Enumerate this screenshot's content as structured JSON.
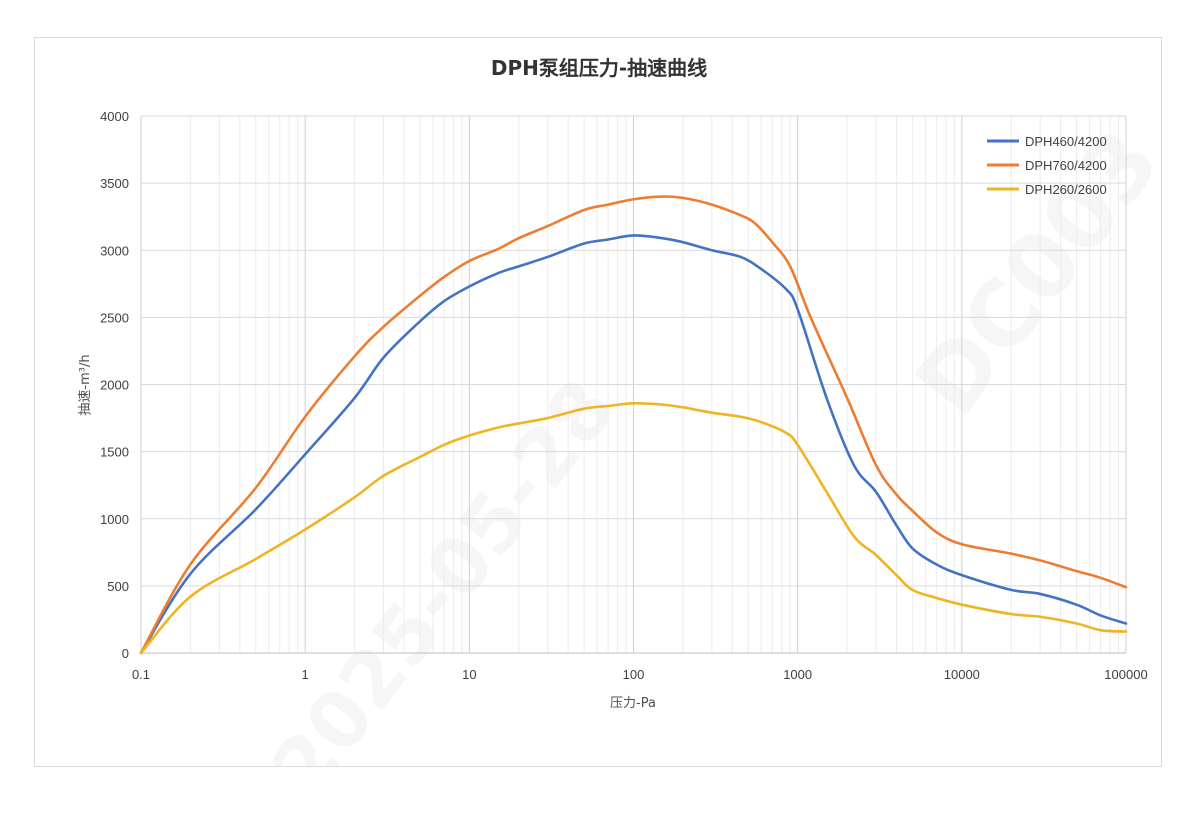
{
  "chart_data": {
    "type": "line",
    "title": "DPH泵组压力-抽速曲线",
    "xlabel": "压力-Pa",
    "ylabel": "抽速-m³/h",
    "x_scale": "log",
    "xlim": [
      0.1,
      100000
    ],
    "ylim": [
      0,
      4000
    ],
    "x_ticks": [
      "0.1",
      "1",
      "10",
      "100",
      "1000",
      "10000",
      "100000"
    ],
    "y_ticks": [
      "0",
      "500",
      "1000",
      "1500",
      "2000",
      "2500",
      "3000",
      "3500",
      "4000"
    ],
    "grid": true,
    "legend_position": "top-right",
    "series": [
      {
        "name": "DPH460/4200",
        "color": "#4472C4",
        "points": [
          [
            0.1,
            0
          ],
          [
            0.2,
            590
          ],
          [
            0.5,
            1070
          ],
          [
            1,
            1480
          ],
          [
            2,
            1900
          ],
          [
            3,
            2200
          ],
          [
            5,
            2470
          ],
          [
            7,
            2620
          ],
          [
            10,
            2730
          ],
          [
            15,
            2830
          ],
          [
            20,
            2880
          ],
          [
            30,
            2950
          ],
          [
            50,
            3050
          ],
          [
            70,
            3080
          ],
          [
            100,
            3110
          ],
          [
            150,
            3090
          ],
          [
            200,
            3060
          ],
          [
            300,
            3000
          ],
          [
            450,
            2950
          ],
          [
            600,
            2860
          ],
          [
            850,
            2710
          ],
          [
            1000,
            2560
          ],
          [
            1500,
            1900
          ],
          [
            2200,
            1400
          ],
          [
            3000,
            1200
          ],
          [
            4000,
            950
          ],
          [
            5000,
            780
          ],
          [
            7000,
            660
          ],
          [
            10000,
            580
          ],
          [
            20000,
            470
          ],
          [
            30000,
            440
          ],
          [
            50000,
            360
          ],
          [
            70000,
            280
          ],
          [
            100000,
            220
          ]
        ]
      },
      {
        "name": "DPH760/4200",
        "color": "#ED7D31",
        "points": [
          [
            0.1,
            0
          ],
          [
            0.2,
            660
          ],
          [
            0.5,
            1230
          ],
          [
            1,
            1760
          ],
          [
            2,
            2210
          ],
          [
            3,
            2430
          ],
          [
            5,
            2660
          ],
          [
            7,
            2800
          ],
          [
            10,
            2920
          ],
          [
            15,
            3010
          ],
          [
            20,
            3090
          ],
          [
            30,
            3180
          ],
          [
            50,
            3300
          ],
          [
            70,
            3340
          ],
          [
            100,
            3380
          ],
          [
            150,
            3400
          ],
          [
            200,
            3390
          ],
          [
            300,
            3340
          ],
          [
            450,
            3260
          ],
          [
            550,
            3200
          ],
          [
            700,
            3060
          ],
          [
            900,
            2880
          ],
          [
            1200,
            2500
          ],
          [
            2000,
            1900
          ],
          [
            3000,
            1400
          ],
          [
            4000,
            1180
          ],
          [
            5000,
            1060
          ],
          [
            7000,
            900
          ],
          [
            10000,
            810
          ],
          [
            20000,
            740
          ],
          [
            30000,
            690
          ],
          [
            50000,
            610
          ],
          [
            70000,
            560
          ],
          [
            100000,
            490
          ]
        ]
      },
      {
        "name": "DPH260/2600",
        "color": "#F0B422",
        "points": [
          [
            0.1,
            0
          ],
          [
            0.2,
            420
          ],
          [
            0.5,
            700
          ],
          [
            1,
            920
          ],
          [
            2,
            1160
          ],
          [
            3,
            1320
          ],
          [
            5,
            1460
          ],
          [
            7,
            1550
          ],
          [
            10,
            1620
          ],
          [
            15,
            1680
          ],
          [
            20,
            1710
          ],
          [
            30,
            1750
          ],
          [
            50,
            1820
          ],
          [
            70,
            1840
          ],
          [
            100,
            1860
          ],
          [
            150,
            1850
          ],
          [
            200,
            1830
          ],
          [
            300,
            1790
          ],
          [
            450,
            1760
          ],
          [
            600,
            1720
          ],
          [
            850,
            1640
          ],
          [
            1000,
            1550
          ],
          [
            1500,
            1200
          ],
          [
            2200,
            870
          ],
          [
            3000,
            730
          ],
          [
            4000,
            580
          ],
          [
            5000,
            470
          ],
          [
            7000,
            410
          ],
          [
            10000,
            360
          ],
          [
            20000,
            290
          ],
          [
            30000,
            270
          ],
          [
            50000,
            220
          ],
          [
            70000,
            170
          ],
          [
            100000,
            160
          ]
        ]
      }
    ]
  },
  "watermark": {
    "date": "2025-05-28",
    "code": "DC003"
  }
}
